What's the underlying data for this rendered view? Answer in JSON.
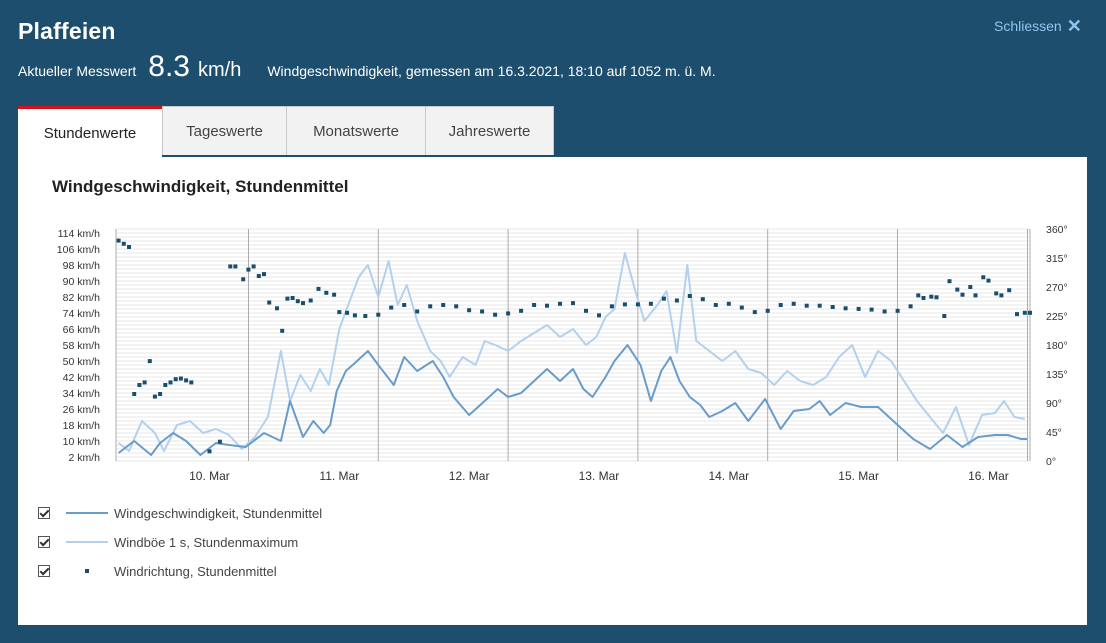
{
  "header": {
    "station": "Plaffeien",
    "close_label": "Schliessen",
    "close_icon": "close-icon",
    "measure_label": "Aktueller Messwert",
    "measure_value": "8.3",
    "measure_unit": "km/h",
    "measure_desc": "Windgeschwindigkeit, gemessen am 16.3.2021, 18:10 auf 1052 m. ü. M."
  },
  "tabs": [
    {
      "label": "Stundenwerte",
      "active": true
    },
    {
      "label": "Tageswerte",
      "active": false
    },
    {
      "label": "Monatswerte",
      "active": false
    },
    {
      "label": "Jahreswerte",
      "active": false
    }
  ],
  "legend": [
    {
      "label": "Windgeschwindigkeit, Stundenmittel",
      "checked": true
    },
    {
      "label": "Windböe 1 s, Stundenmaximum",
      "checked": true
    },
    {
      "label": "Windrichtung, Stundenmittel",
      "checked": true
    }
  ],
  "colors": {
    "background": "#1e4e6e",
    "accent": "#d3131c",
    "close": "#8ec5ec",
    "speed": "#6a9cc9",
    "gust": "#b3d1ee",
    "direction": "#1a4e6d"
  },
  "chart_data": {
    "type": "line",
    "title": "Windgeschwindigkeit, Stundenmittel",
    "x_labels": [
      "10. Mar",
      "11. Mar",
      "12. Mar",
      "13. Mar",
      "14. Mar",
      "15. Mar",
      "16. Mar"
    ],
    "y_left_labels": [
      "2 km/h",
      "10 km/h",
      "18 km/h",
      "26 km/h",
      "34 km/h",
      "42 km/h",
      "50 km/h",
      "58 km/h",
      "66 km/h",
      "74 km/h",
      "82 km/h",
      "90 km/h",
      "98 km/h",
      "106 km/h",
      "114 km/h"
    ],
    "y_right_labels": [
      "0°",
      "45°",
      "90°",
      "135°",
      "180°",
      "225°",
      "270°",
      "315°",
      "360°"
    ],
    "x_range_days": [
      9.28,
      16.32
    ],
    "ylim_speed": [
      0,
      116
    ],
    "ylim_direction": [
      0,
      360
    ],
    "grid": true,
    "series": [
      {
        "name": "Windgeschwindigkeit, Stundenmittel",
        "x": [
          9.3,
          9.42,
          9.55,
          9.62,
          9.72,
          9.82,
          9.93,
          10.05,
          10.15,
          10.28,
          10.42,
          10.55,
          10.62,
          10.72,
          10.8,
          10.88,
          10.93,
          10.98,
          11.05,
          11.12,
          11.22,
          11.3,
          11.42,
          11.5,
          11.6,
          11.72,
          11.8,
          11.88,
          12.0,
          12.12,
          12.22,
          12.3,
          12.4,
          12.5,
          12.6,
          12.7,
          12.8,
          12.88,
          12.95,
          13.05,
          13.12,
          13.22,
          13.32,
          13.4,
          13.48,
          13.55,
          13.62,
          13.7,
          13.78,
          13.85,
          13.95,
          14.05,
          14.15,
          14.28,
          14.4,
          14.5,
          14.62,
          14.7,
          14.78,
          14.9,
          15.02,
          15.15,
          15.3,
          15.42,
          15.55,
          15.68,
          15.8,
          15.92,
          16.05,
          16.15,
          16.25,
          16.3
        ],
        "values": [
          4,
          10,
          3,
          9,
          14,
          10,
          3,
          9,
          8,
          7,
          14,
          10,
          30,
          12,
          20,
          14,
          18,
          35,
          45,
          49,
          55,
          48,
          38,
          52,
          45,
          50,
          42,
          32,
          23,
          30,
          36,
          32,
          34,
          40,
          46,
          40,
          46,
          36,
          32,
          42,
          50,
          58,
          48,
          30,
          45,
          52,
          40,
          32,
          28,
          22,
          25,
          29,
          20,
          31,
          16,
          25,
          26,
          30,
          23,
          29,
          27,
          27,
          18,
          11,
          6,
          13,
          7,
          12,
          13,
          13,
          11,
          11
        ]
      },
      {
        "name": "Windböe 1 s, Stundenmaximum",
        "x": [
          9.3,
          9.38,
          9.48,
          9.58,
          9.65,
          9.75,
          9.85,
          9.95,
          10.05,
          10.15,
          10.25,
          10.35,
          10.45,
          10.55,
          10.62,
          10.7,
          10.78,
          10.85,
          10.92,
          11.0,
          11.08,
          11.15,
          11.22,
          11.3,
          11.38,
          11.45,
          11.52,
          11.6,
          11.7,
          11.78,
          11.85,
          11.95,
          12.05,
          12.12,
          12.2,
          12.3,
          12.4,
          12.5,
          12.6,
          12.7,
          12.8,
          12.9,
          12.98,
          13.05,
          13.12,
          13.2,
          13.28,
          13.35,
          13.45,
          13.52,
          13.6,
          13.68,
          13.75,
          13.85,
          13.95,
          14.05,
          14.15,
          14.25,
          14.35,
          14.45,
          14.55,
          14.65,
          14.75,
          14.85,
          14.95,
          15.05,
          15.15,
          15.25,
          15.35,
          15.45,
          15.55,
          15.65,
          15.75,
          15.85,
          15.95,
          16.05,
          16.12,
          16.2,
          16.28
        ],
        "values": [
          9,
          5,
          20,
          14,
          5,
          18,
          20,
          14,
          16,
          13,
          6,
          12,
          22,
          55,
          30,
          43,
          35,
          46,
          38,
          66,
          80,
          92,
          98,
          82,
          100,
          78,
          88,
          70,
          55,
          50,
          42,
          52,
          48,
          60,
          58,
          55,
          60,
          64,
          68,
          62,
          66,
          58,
          62,
          72,
          76,
          104,
          85,
          70,
          78,
          85,
          54,
          98,
          60,
          55,
          50,
          55,
          46,
          44,
          38,
          45,
          40,
          38,
          42,
          52,
          58,
          42,
          55,
          50,
          40,
          30,
          22,
          14,
          27,
          8,
          23,
          24,
          30,
          22,
          21
        ]
      },
      {
        "name": "Windrichtung, Stundenmittel",
        "x": [
          9.3,
          9.34,
          9.38,
          9.42,
          9.46,
          9.5,
          9.54,
          9.58,
          9.62,
          9.66,
          9.7,
          9.74,
          9.78,
          9.82,
          9.86,
          10.0,
          10.08,
          10.16,
          10.2,
          10.26,
          10.3,
          10.34,
          10.38,
          10.42,
          10.46,
          10.52,
          10.56,
          10.6,
          10.64,
          10.68,
          10.72,
          10.78,
          10.84,
          10.9,
          10.96,
          11.0,
          11.06,
          11.12,
          11.2,
          11.3,
          11.4,
          11.5,
          11.6,
          11.7,
          11.8,
          11.9,
          12.0,
          12.1,
          12.2,
          12.3,
          12.4,
          12.5,
          12.6,
          12.7,
          12.8,
          12.9,
          13.0,
          13.1,
          13.2,
          13.3,
          13.4,
          13.5,
          13.6,
          13.7,
          13.8,
          13.9,
          14.0,
          14.1,
          14.2,
          14.3,
          14.4,
          14.5,
          14.6,
          14.7,
          14.8,
          14.9,
          15.0,
          15.1,
          15.2,
          15.3,
          15.4,
          15.46,
          15.5,
          15.56,
          15.6,
          15.66,
          15.7,
          15.76,
          15.8,
          15.86,
          15.9,
          15.96,
          16.0,
          16.06,
          16.1,
          16.16,
          16.22,
          16.28,
          16.32
        ],
        "values": [
          342,
          337,
          332,
          104,
          118,
          122,
          155,
          100,
          104,
          118,
          122,
          127,
          128,
          125,
          122,
          15,
          30,
          302,
          302,
          282,
          297,
          302,
          287,
          290,
          246,
          237,
          202,
          252,
          253,
          248,
          245,
          249,
          267,
          261,
          258,
          231,
          230,
          226,
          225,
          227,
          238,
          242,
          232,
          240,
          242,
          240,
          234,
          232,
          227,
          229,
          233,
          242,
          241,
          244,
          245,
          233,
          226,
          240,
          243,
          243,
          244,
          252,
          249,
          256,
          251,
          242,
          244,
          238,
          231,
          233,
          242,
          244,
          241,
          241,
          239,
          237,
          236,
          235,
          232,
          233,
          240,
          257,
          253,
          255,
          254,
          225,
          279,
          266,
          258,
          270,
          257,
          285,
          280,
          260,
          257,
          265,
          228,
          230,
          230
        ]
      }
    ]
  }
}
